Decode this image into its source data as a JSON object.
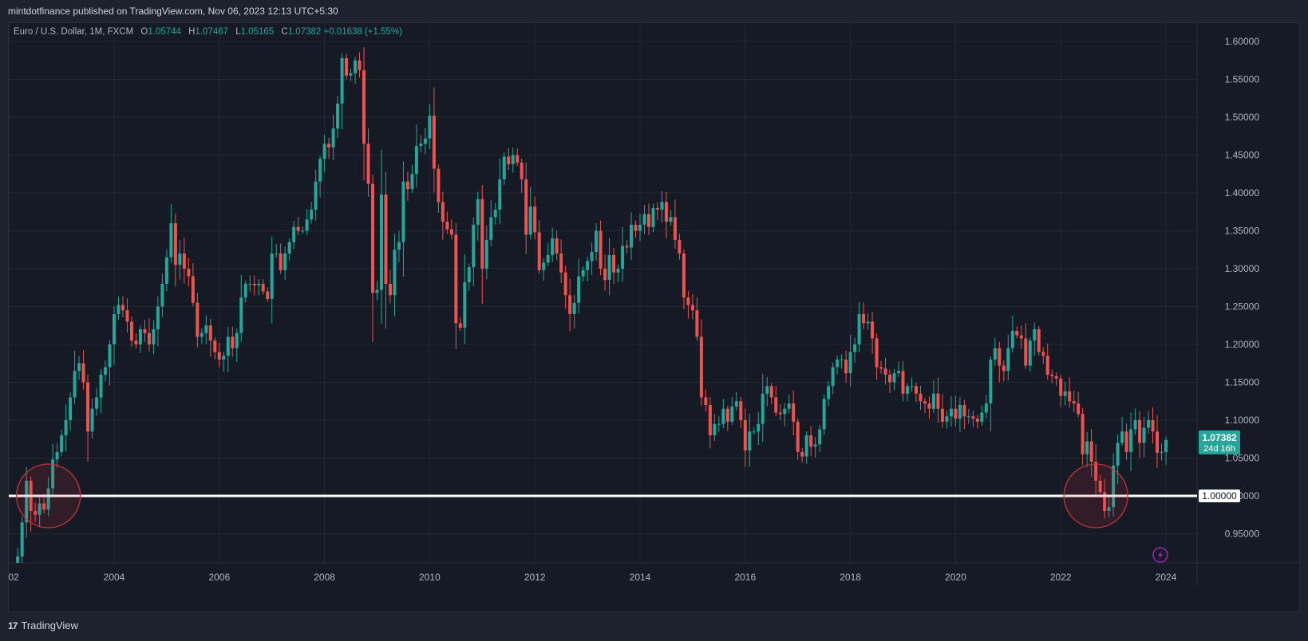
{
  "publisher_line": "mintdotfinance published on TradingView.com, Nov 06, 2023 12:13 UTC+5:30",
  "legend": {
    "symbol": "Euro / U.S. Dollar, 1M, FXCM",
    "o_label": "O",
    "open": "1.05744",
    "h_label": "H",
    "high": "1.07467",
    "l_label": "L",
    "low": "1.05165",
    "c_label": "C",
    "close": "1.07382",
    "change": "+0.01638 (+1.55%)"
  },
  "footer": {
    "brand": "TradingView",
    "logo_glyph": "17"
  },
  "colors": {
    "background": "#161a25",
    "up": "#26a69a",
    "down": "#ef5350",
    "grid": "#232734",
    "level_line": "#ffffff",
    "circle": "#c8323c",
    "axis_text": "#b2b5be",
    "price_tag": "#26a69a",
    "alert_icon": "#9c27b0"
  },
  "chart_data": {
    "type": "candlestick",
    "title": "Euro / U.S. Dollar, 1M, FXCM",
    "interval": "1M",
    "ylim": [
      0.905,
      1.625
    ],
    "y_ticks": [
      "1.60000",
      "1.55000",
      "1.50000",
      "1.45000",
      "1.40000",
      "1.35000",
      "1.30000",
      "1.25000",
      "1.20000",
      "1.15000",
      "1.10000",
      "1.05000",
      "1.00000",
      "0.95000"
    ],
    "x_ticks": [
      "02",
      "2004",
      "2006",
      "2008",
      "2010",
      "2012",
      "2014",
      "2016",
      "2018",
      "2020",
      "2022",
      "2024"
    ],
    "x_tick_years": [
      2002,
      2004,
      2006,
      2008,
      2010,
      2012,
      2014,
      2016,
      2018,
      2020,
      2022,
      2024
    ],
    "grid": true,
    "horizontal_line": {
      "value": 1.0,
      "label": "1.00000"
    },
    "highlight_circles": [
      {
        "date": "2002-10",
        "price": 1.0
      },
      {
        "date": "2022-09",
        "price": 1.0
      }
    ],
    "last_price": {
      "value": 1.07382,
      "label": "1.07382",
      "countdown": "24d 16h"
    },
    "start": "2002-03",
    "monthly_close": [
      0.92,
      0.965,
      1.02,
      0.98,
      0.975,
      0.99,
      0.982,
      1.01,
      1.048,
      1.058,
      1.08,
      1.1,
      1.13,
      1.165,
      1.175,
      1.15,
      1.085,
      1.115,
      1.13,
      1.16,
      1.17,
      1.2,
      1.24,
      1.252,
      1.245,
      1.23,
      1.205,
      1.2,
      1.22,
      1.215,
      1.2,
      1.22,
      1.25,
      1.28,
      1.315,
      1.36,
      1.305,
      1.32,
      1.3,
      1.29,
      1.255,
      1.21,
      1.215,
      1.225,
      1.205,
      1.19,
      1.18,
      1.185,
      1.21,
      1.195,
      1.215,
      1.262,
      1.28,
      1.28,
      1.278,
      1.28,
      1.27,
      1.26,
      1.32,
      1.32,
      1.298,
      1.32,
      1.335,
      1.355,
      1.35,
      1.35,
      1.365,
      1.378,
      1.415,
      1.445,
      1.465,
      1.46,
      1.485,
      1.518,
      1.578,
      1.555,
      1.558,
      1.575,
      1.562,
      1.465,
      1.412,
      1.268,
      1.272,
      1.398,
      1.28,
      1.265,
      1.325,
      1.335,
      1.415,
      1.405,
      1.425,
      1.462,
      1.465,
      1.472,
      1.502,
      1.432,
      1.388,
      1.362,
      1.352,
      1.345,
      1.228,
      1.222,
      1.282,
      1.302,
      1.358,
      1.392,
      1.3,
      1.338,
      1.368,
      1.378,
      1.418,
      1.448,
      1.438,
      1.45,
      1.44,
      1.418,
      1.345,
      1.382,
      1.348,
      1.298,
      1.308,
      1.318,
      1.34,
      1.32,
      1.295,
      1.265,
      1.24,
      1.255,
      1.29,
      1.298,
      1.31,
      1.322,
      1.35,
      1.3,
      1.285,
      1.318,
      1.295,
      1.3,
      1.33,
      1.328,
      1.358,
      1.35,
      1.358,
      1.372,
      1.355,
      1.38,
      1.378,
      1.388,
      1.362,
      1.368,
      1.338,
      1.32,
      1.262,
      1.252,
      1.245,
      1.21,
      1.13,
      1.12,
      1.08,
      1.095,
      1.095,
      1.115,
      1.098,
      1.118,
      1.125,
      1.1,
      1.06,
      1.085,
      1.085,
      1.095,
      1.135,
      1.145,
      1.13,
      1.11,
      1.108,
      1.115,
      1.122,
      1.098,
      1.058,
      1.052,
      1.08,
      1.065,
      1.068,
      1.088,
      1.128,
      1.145,
      1.17,
      1.18,
      1.18,
      1.162,
      1.19,
      1.2,
      1.24,
      1.228,
      1.23,
      1.208,
      1.17,
      1.168,
      1.16,
      1.15,
      1.162,
      1.165,
      1.135,
      1.145,
      1.145,
      1.135,
      1.125,
      1.122,
      1.115,
      1.135,
      1.115,
      1.098,
      1.105,
      1.115,
      1.102,
      1.12,
      1.105,
      1.105,
      1.102,
      1.098,
      1.11,
      1.122,
      1.18,
      1.195,
      1.172,
      1.165,
      1.195,
      1.218,
      1.212,
      1.208,
      1.172,
      1.205,
      1.22,
      1.19,
      1.185,
      1.16,
      1.158,
      1.155,
      1.132,
      1.138,
      1.125,
      1.122,
      1.108,
      1.055,
      1.072,
      1.045,
      1.02,
      1.005,
      0.98,
      0.985,
      1.04,
      1.07,
      1.085,
      1.058,
      1.088,
      1.1,
      1.07,
      1.09,
      1.1,
      1.085,
      1.057,
      1.058,
      1.074
    ]
  }
}
